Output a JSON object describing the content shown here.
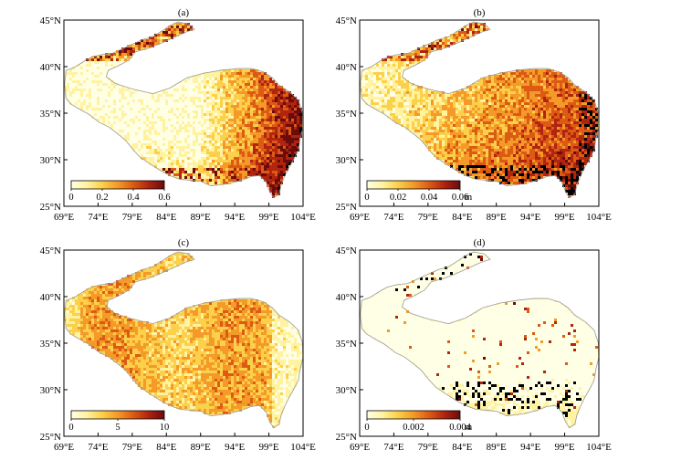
{
  "chart_data": {
    "type": "map",
    "lon_ticks": [
      "69°E",
      "74°E",
      "79°E",
      "84°E",
      "89°E",
      "94°E",
      "99°E",
      "104°E"
    ],
    "lat_ticks": [
      "45°N",
      "40°N",
      "35°N",
      "30°N",
      "25°N"
    ],
    "lon_range": [
      69,
      104
    ],
    "lat_range": [
      25,
      45
    ],
    "colors": {
      "cmap": [
        "#ffffe6",
        "#fff2a0",
        "#fcd04a",
        "#f39a28",
        "#dc5a14",
        "#b02410",
        "#6a0c0c"
      ],
      "boundary": "#9a9a9a",
      "frame": "#000000"
    },
    "panels": [
      {
        "label": "(a)",
        "scheme": "east_high",
        "colorbar": {
          "ticks": [
            "0",
            "0.2",
            "0.4",
            "0.6"
          ],
          "range": [
            0,
            0.6
          ],
          "unit": ""
        }
      },
      {
        "label": "(b)",
        "scheme": "center_mid",
        "colorbar": {
          "ticks": [
            "0",
            "0.02",
            "0.04",
            "0.06"
          ],
          "range": [
            0,
            0.06
          ],
          "unit": "m"
        }
      },
      {
        "label": "(c)",
        "scheme": "uniform_mid",
        "colorbar": {
          "ticks": [
            "0",
            "5",
            "10"
          ],
          "range": [
            0,
            10
          ],
          "unit": ""
        }
      },
      {
        "label": "(d)",
        "scheme": "low_speck",
        "colorbar": {
          "ticks": [
            "0",
            "0.002",
            "0.004"
          ],
          "range": [
            0,
            0.004
          ],
          "unit": "m"
        }
      }
    ]
  }
}
